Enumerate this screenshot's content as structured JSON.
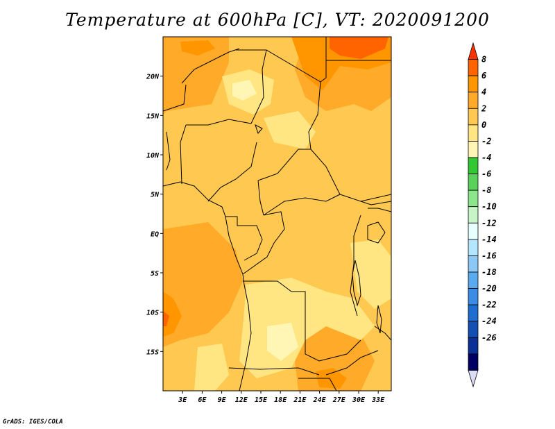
{
  "title": "Temperature at 600hPa [C], VT: 2020091200",
  "credit": "GrADS: IGES/COLA",
  "map": {
    "lon_range": [
      0,
      35
    ],
    "lat_range": [
      -20,
      25
    ],
    "lat_labels": [
      "20N",
      "15N",
      "10N",
      "5N",
      "EQ",
      "5S",
      "10S",
      "15S"
    ],
    "lat_values": [
      20,
      15,
      10,
      5,
      0,
      -5,
      -10,
      -15
    ],
    "lon_labels": [
      "3E",
      "6E",
      "9E",
      "12E",
      "15E",
      "18E",
      "21E",
      "24E",
      "27E",
      "30E",
      "33E"
    ],
    "lon_values": [
      3,
      6,
      9,
      12,
      15,
      18,
      21,
      24,
      27,
      30,
      33
    ]
  },
  "colorbar": {
    "labels": [
      "8",
      "6",
      "4",
      "2",
      "0",
      "-2",
      "-4",
      "-6",
      "-8",
      "-10",
      "-12",
      "-14",
      "-16",
      "-18",
      "-20",
      "-22",
      "-24",
      "-26"
    ],
    "colors": [
      "#ff3200",
      "#ff6400",
      "#ff9600",
      "#ffaa28",
      "#ffc850",
      "#ffe682",
      "#fff5b4",
      "#32c832",
      "#5ad25a",
      "#8ce68c",
      "#c8f5c8",
      "#e6ffff",
      "#b4e6ff",
      "#8cc8f5",
      "#5aaaf0",
      "#3c8ce6",
      "#1e6ed2",
      "#1450b4",
      "#0a3296",
      "#000064",
      "#dcdcf5"
    ]
  }
}
